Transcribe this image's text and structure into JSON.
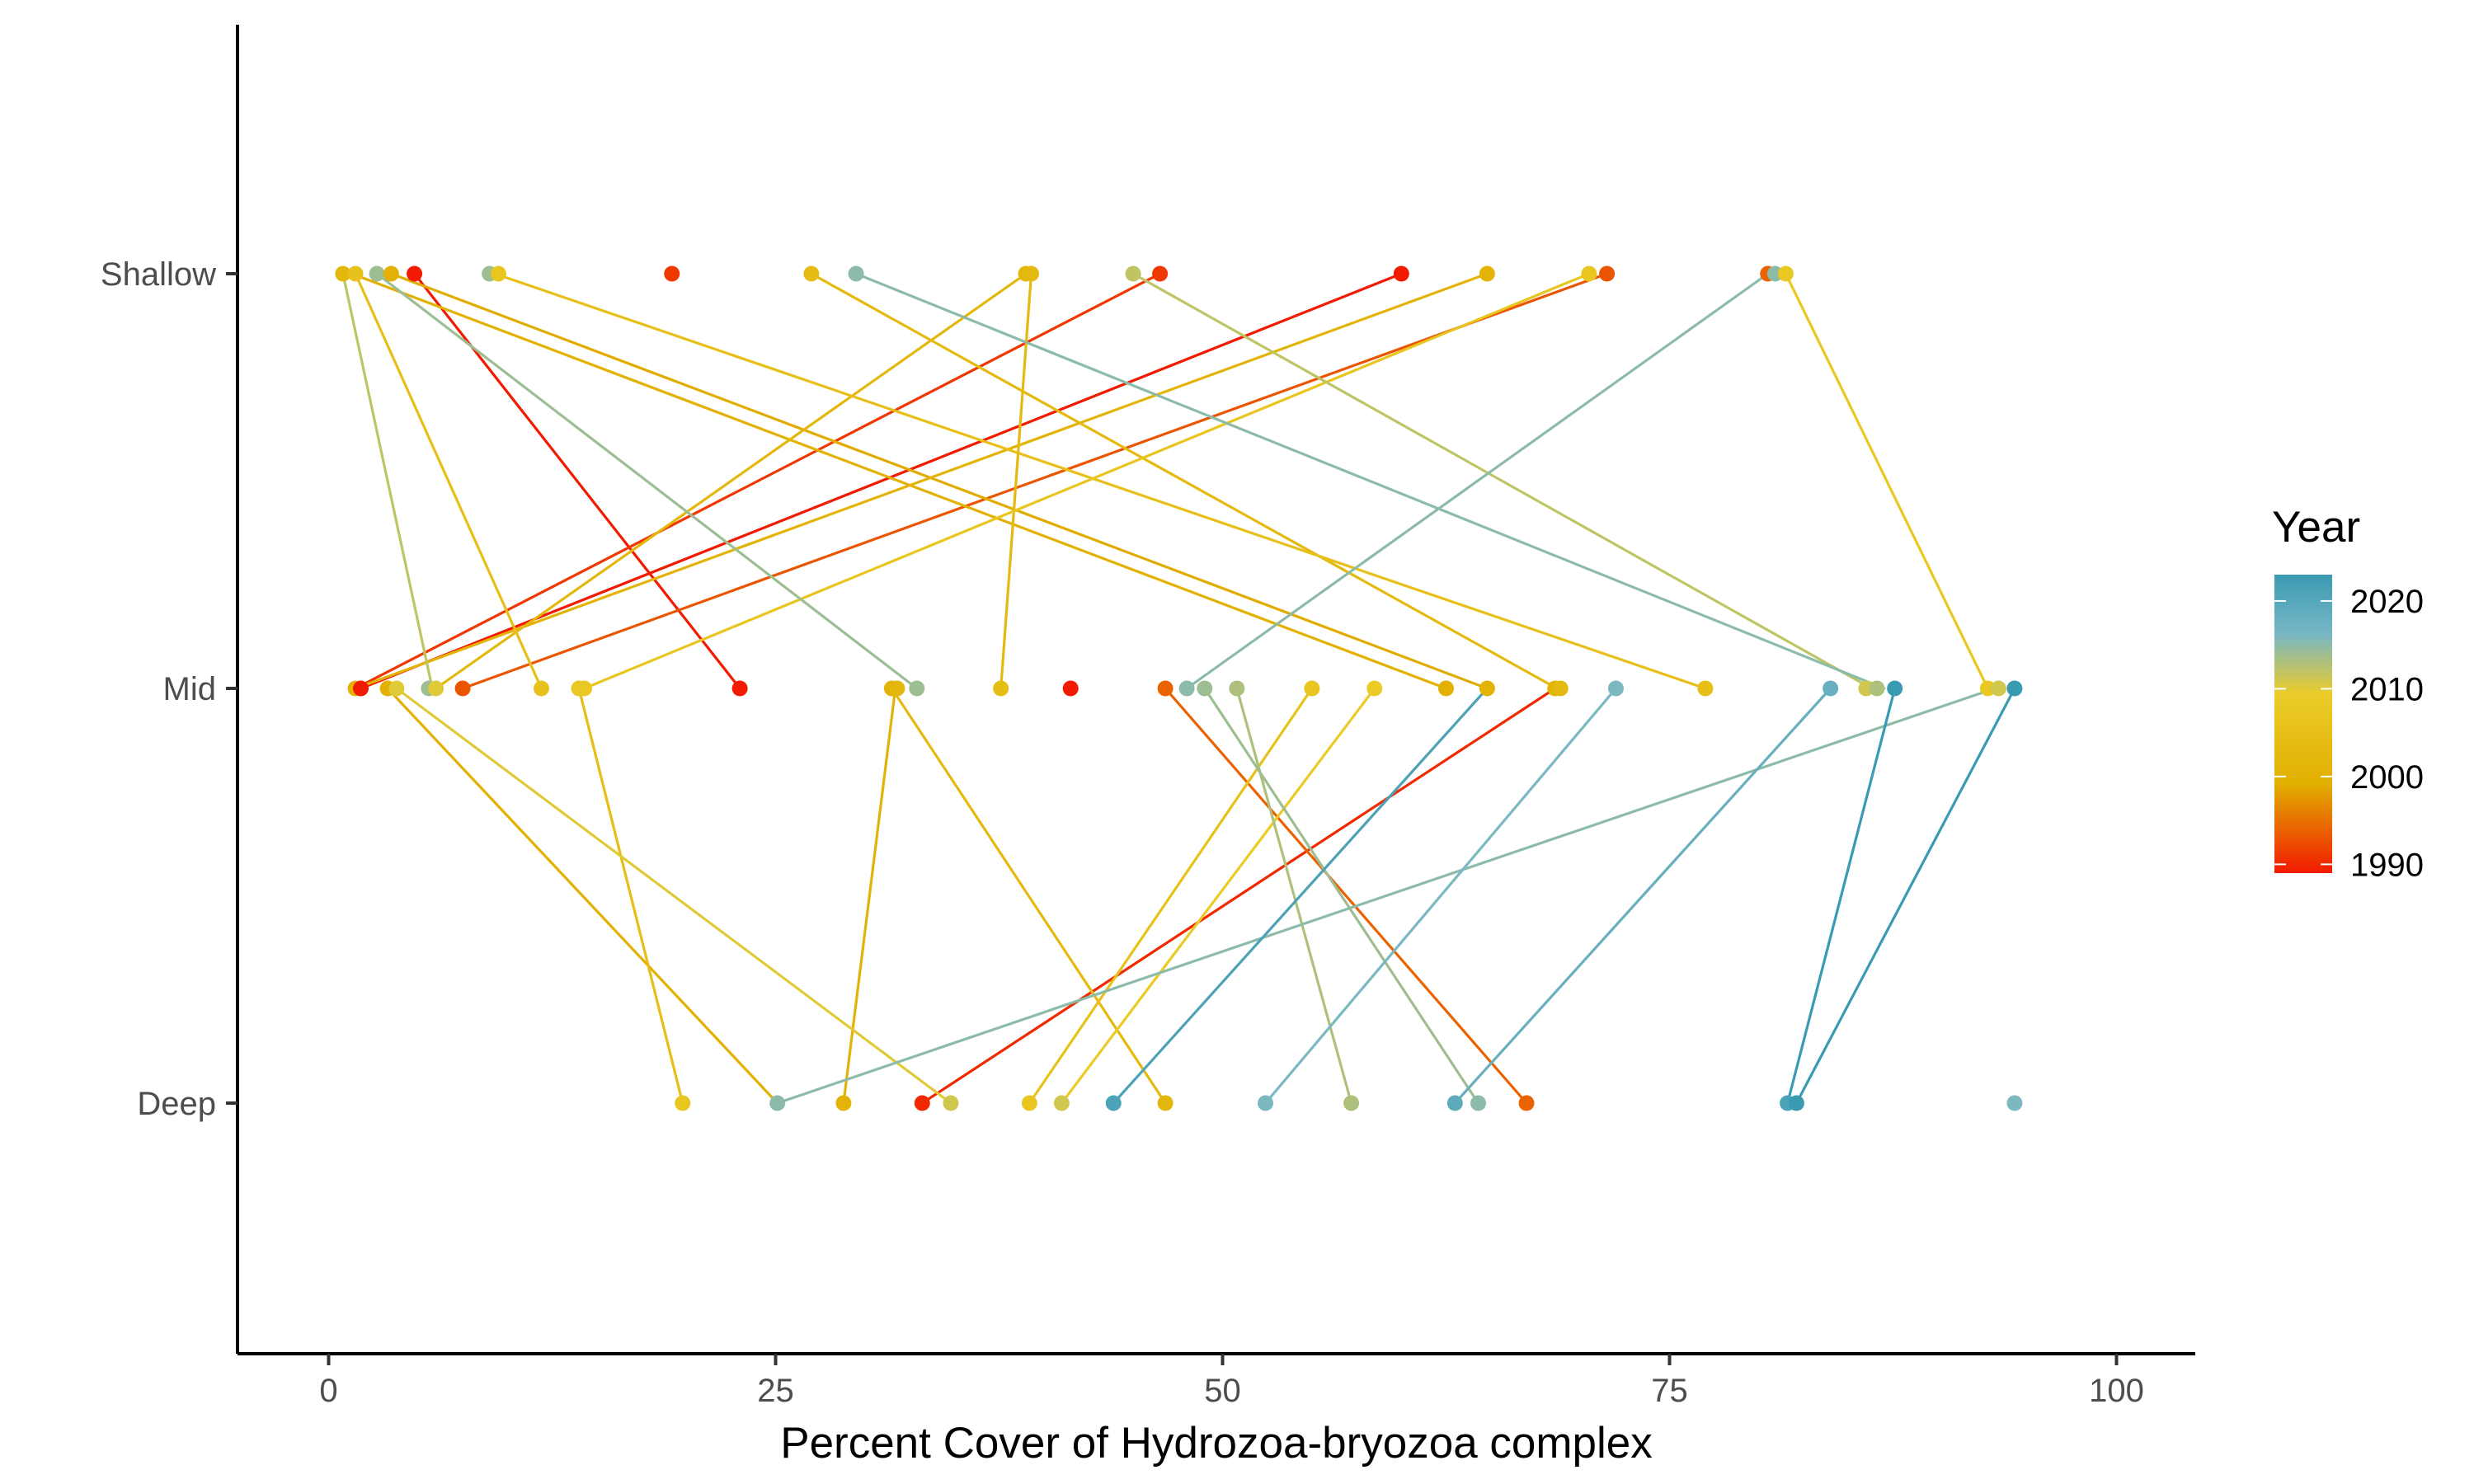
{
  "chart_data": {
    "type": "line",
    "xlabel": "Percent Cover of Hydrozoa-bryozoa complex",
    "ylabel": "",
    "xlim": [
      -5,
      105
    ],
    "x_ticks": [
      0,
      25,
      50,
      75,
      100
    ],
    "x_tick_labels": [
      "0",
      "25",
      "50",
      "75",
      "100"
    ],
    "categories": [
      "Deep",
      "Mid",
      "Shallow"
    ],
    "grid": false,
    "legend": {
      "title": "Year",
      "type": "colorbar",
      "position": "right",
      "min": 1989,
      "max": 2023,
      "breaks": [
        2020,
        2010,
        2000,
        1990
      ],
      "colors": [
        "#3a9ab2",
        "#78b7c5",
        "#ebcc2a",
        "#e1af00",
        "#f21a00"
      ]
    },
    "segments": [
      {
        "year": 1989,
        "from": [
          "Shallow",
          4.8
        ],
        "to": [
          "Mid",
          23.0
        ]
      },
      {
        "year": 1989,
        "from": [
          "Shallow",
          60.0
        ],
        "to": [
          "Mid",
          1.8
        ]
      },
      {
        "year": 1991,
        "from": [
          "Shallow",
          46.5
        ],
        "to": [
          "Mid",
          1.5
        ]
      },
      {
        "year": 1993,
        "from": [
          "Shallow",
          71.5
        ],
        "to": [
          "Mid",
          7.5
        ]
      },
      {
        "year": 1990,
        "from": [
          "Mid",
          68.6
        ],
        "to": [
          "Deep",
          33.2
        ]
      },
      {
        "year": 1994,
        "from": [
          "Mid",
          46.8
        ],
        "to": [
          "Deep",
          67.0
        ]
      },
      {
        "year": 1999,
        "from": [
          "Shallow",
          3.5
        ],
        "to": [
          "Mid",
          64.8
        ]
      },
      {
        "year": 2000,
        "from": [
          "Shallow",
          1.3
        ],
        "to": [
          "Mid",
          62.5
        ]
      },
      {
        "year": 2001,
        "from": [
          "Shallow",
          64.8
        ],
        "to": [
          "Mid",
          1.5
        ]
      },
      {
        "year": 2002,
        "from": [
          "Shallow",
          39.0
        ],
        "to": [
          "Mid",
          6.0
        ]
      },
      {
        "year": 2003,
        "from": [
          "Shallow",
          27.0
        ],
        "to": [
          "Mid",
          68.7
        ]
      },
      {
        "year": 2003,
        "from": [
          "Shallow",
          39.3
        ],
        "to": [
          "Mid",
          37.6
        ]
      },
      {
        "year": 2005,
        "from": [
          "Shallow",
          9.3
        ],
        "to": [
          "Mid",
          77.0
        ]
      },
      {
        "year": 2005,
        "from": [
          "Shallow",
          1.5
        ],
        "to": [
          "Mid",
          11.9
        ]
      },
      {
        "year": 2007,
        "from": [
          "Shallow",
          70.5
        ],
        "to": [
          "Mid",
          14.3
        ]
      },
      {
        "year": 2008,
        "from": [
          "Shallow",
          81.5
        ],
        "to": [
          "Mid",
          92.8
        ]
      },
      {
        "year": 2000,
        "from": [
          "Mid",
          3.3
        ],
        "to": [
          "Deep",
          25.1
        ]
      },
      {
        "year": 2001,
        "from": [
          "Mid",
          31.7
        ],
        "to": [
          "Deep",
          28.8
        ]
      },
      {
        "year": 2003,
        "from": [
          "Mid",
          31.5
        ],
        "to": [
          "Deep",
          46.8
        ]
      },
      {
        "year": 2004,
        "from": [
          "Mid",
          14.0
        ],
        "to": [
          "Deep",
          19.8
        ]
      },
      {
        "year": 2006,
        "from": [
          "Mid",
          55.0
        ],
        "to": [
          "Deep",
          39.2
        ]
      },
      {
        "year": 2009,
        "from": [
          "Mid",
          58.5
        ],
        "to": [
          "Deep",
          41.0
        ]
      },
      {
        "year": 2010,
        "from": [
          "Mid",
          3.8
        ],
        "to": [
          "Deep",
          34.8
        ]
      },
      {
        "year": 2012,
        "from": [
          "Shallow",
          0.8
        ],
        "to": [
          "Mid",
          5.8
        ]
      },
      {
        "year": 2012,
        "from": [
          "Shallow",
          45.0
        ],
        "to": [
          "Mid",
          86.3
        ]
      },
      {
        "year": 2013,
        "from": [
          "Mid",
          50.8
        ],
        "to": [
          "Deep",
          57.2
        ]
      },
      {
        "year": 2014,
        "from": [
          "Shallow",
          2.7
        ],
        "to": [
          "Mid",
          32.9
        ]
      },
      {
        "year": 2014,
        "from": [
          "Mid",
          49.0
        ],
        "to": [
          "Deep",
          64.3
        ]
      },
      {
        "year": 2015,
        "from": [
          "Shallow",
          80.5
        ],
        "to": [
          "Mid",
          48.0
        ]
      },
      {
        "year": 2015,
        "from": [
          "Shallow",
          29.5
        ],
        "to": [
          "Mid",
          87.0
        ]
      },
      {
        "year": 2015,
        "from": [
          "Deep",
          25.1
        ],
        "to": [
          "Mid",
          93.2
        ]
      },
      {
        "year": 2016,
        "from": [
          "Deep",
          52.4
        ],
        "to": [
          "Mid",
          72.0
        ]
      },
      {
        "year": 2018,
        "from": [
          "Deep",
          63.0
        ],
        "to": [
          "Mid",
          84.0
        ]
      },
      {
        "year": 2021,
        "from": [
          "Deep",
          43.9
        ],
        "to": [
          "Mid",
          64.8
        ]
      },
      {
        "year": 2023,
        "from": [
          "Deep",
          81.6
        ],
        "to": [
          "Mid",
          87.6
        ]
      },
      {
        "year": 2023,
        "from": [
          "Deep",
          82.1
        ],
        "to": [
          "Mid",
          94.3
        ]
      }
    ],
    "points": [
      {
        "y": "Shallow",
        "x": 0.8,
        "year": 2002
      },
      {
        "y": "Shallow",
        "x": 1.5,
        "year": 2006
      },
      {
        "y": "Shallow",
        "x": 2.7,
        "year": 2014
      },
      {
        "y": "Shallow",
        "x": 3.5,
        "year": 2000
      },
      {
        "y": "Shallow",
        "x": 4.8,
        "year": 1989
      },
      {
        "y": "Shallow",
        "x": 9.0,
        "year": 2014
      },
      {
        "y": "Shallow",
        "x": 9.5,
        "year": 2007
      },
      {
        "y": "Shallow",
        "x": 19.2,
        "year": 1991
      },
      {
        "y": "Shallow",
        "x": 27.0,
        "year": 2004
      },
      {
        "y": "Shallow",
        "x": 29.5,
        "year": 2015
      },
      {
        "y": "Shallow",
        "x": 39.0,
        "year": 2002
      },
      {
        "y": "Shallow",
        "x": 39.3,
        "year": 2003
      },
      {
        "y": "Shallow",
        "x": 45.0,
        "year": 2012
      },
      {
        "y": "Shallow",
        "x": 46.5,
        "year": 1991
      },
      {
        "y": "Shallow",
        "x": 60.0,
        "year": 1989
      },
      {
        "y": "Shallow",
        "x": 64.8,
        "year": 2001
      },
      {
        "y": "Shallow",
        "x": 70.5,
        "year": 2007
      },
      {
        "y": "Shallow",
        "x": 71.5,
        "year": 1993
      },
      {
        "y": "Shallow",
        "x": 80.5,
        "year": 1994
      },
      {
        "y": "Shallow",
        "x": 80.9,
        "year": 2015
      },
      {
        "y": "Shallow",
        "x": 81.5,
        "year": 2008
      },
      {
        "y": "Mid",
        "x": 1.5,
        "year": 2001
      },
      {
        "y": "Mid",
        "x": 1.8,
        "year": 1989
      },
      {
        "y": "Mid",
        "x": 3.3,
        "year": 2000
      },
      {
        "y": "Mid",
        "x": 3.8,
        "year": 2010
      },
      {
        "y": "Mid",
        "x": 5.6,
        "year": 2014
      },
      {
        "y": "Mid",
        "x": 6.0,
        "year": 2010
      },
      {
        "y": "Mid",
        "x": 7.5,
        "year": 1993
      },
      {
        "y": "Mid",
        "x": 11.9,
        "year": 2006
      },
      {
        "y": "Mid",
        "x": 14.0,
        "year": 2008
      },
      {
        "y": "Mid",
        "x": 14.3,
        "year": 2008
      },
      {
        "y": "Mid",
        "x": 23.0,
        "year": 1989
      },
      {
        "y": "Mid",
        "x": 31.5,
        "year": 2001
      },
      {
        "y": "Mid",
        "x": 31.8,
        "year": 2002
      },
      {
        "y": "Mid",
        "x": 32.9,
        "year": 2014
      },
      {
        "y": "Mid",
        "x": 37.6,
        "year": 2004
      },
      {
        "y": "Mid",
        "x": 41.5,
        "year": 1989
      },
      {
        "y": "Mid",
        "x": 46.8,
        "year": 1994
      },
      {
        "y": "Mid",
        "x": 48.0,
        "year": 2015
      },
      {
        "y": "Mid",
        "x": 49.0,
        "year": 2014
      },
      {
        "y": "Mid",
        "x": 50.8,
        "year": 2013
      },
      {
        "y": "Mid",
        "x": 55.0,
        "year": 2007
      },
      {
        "y": "Mid",
        "x": 58.5,
        "year": 2009
      },
      {
        "y": "Mid",
        "x": 62.5,
        "year": 2000
      },
      {
        "y": "Mid",
        "x": 64.8,
        "year": 2001
      },
      {
        "y": "Mid",
        "x": 68.6,
        "year": 2001
      },
      {
        "y": "Mid",
        "x": 68.9,
        "year": 2003
      },
      {
        "y": "Mid",
        "x": 72.0,
        "year": 2016
      },
      {
        "y": "Mid",
        "x": 77.0,
        "year": 2005
      },
      {
        "y": "Mid",
        "x": 84.0,
        "year": 2018
      },
      {
        "y": "Mid",
        "x": 86.0,
        "year": 2011
      },
      {
        "y": "Mid",
        "x": 86.6,
        "year": 2013
      },
      {
        "y": "Mid",
        "x": 87.6,
        "year": 2023
      },
      {
        "y": "Mid",
        "x": 92.8,
        "year": 2008
      },
      {
        "y": "Mid",
        "x": 93.4,
        "year": 2011
      },
      {
        "y": "Mid",
        "x": 94.3,
        "year": 2023
      },
      {
        "y": "Deep",
        "x": 19.8,
        "year": 2007
      },
      {
        "y": "Deep",
        "x": 25.1,
        "year": 2015
      },
      {
        "y": "Deep",
        "x": 28.8,
        "year": 2001
      },
      {
        "y": "Deep",
        "x": 33.2,
        "year": 1990
      },
      {
        "y": "Deep",
        "x": 34.8,
        "year": 2011
      },
      {
        "y": "Deep",
        "x": 39.2,
        "year": 2007
      },
      {
        "y": "Deep",
        "x": 41.0,
        "year": 2011
      },
      {
        "y": "Deep",
        "x": 43.9,
        "year": 2021
      },
      {
        "y": "Deep",
        "x": 46.8,
        "year": 2002
      },
      {
        "y": "Deep",
        "x": 52.4,
        "year": 2016
      },
      {
        "y": "Deep",
        "x": 57.2,
        "year": 2013
      },
      {
        "y": "Deep",
        "x": 63.0,
        "year": 2019
      },
      {
        "y": "Deep",
        "x": 64.3,
        "year": 2015
      },
      {
        "y": "Deep",
        "x": 67.0,
        "year": 1994
      },
      {
        "y": "Deep",
        "x": 81.6,
        "year": 2021
      },
      {
        "y": "Deep",
        "x": 82.1,
        "year": 2023
      },
      {
        "y": "Deep",
        "x": 94.3,
        "year": 2016
      }
    ]
  }
}
